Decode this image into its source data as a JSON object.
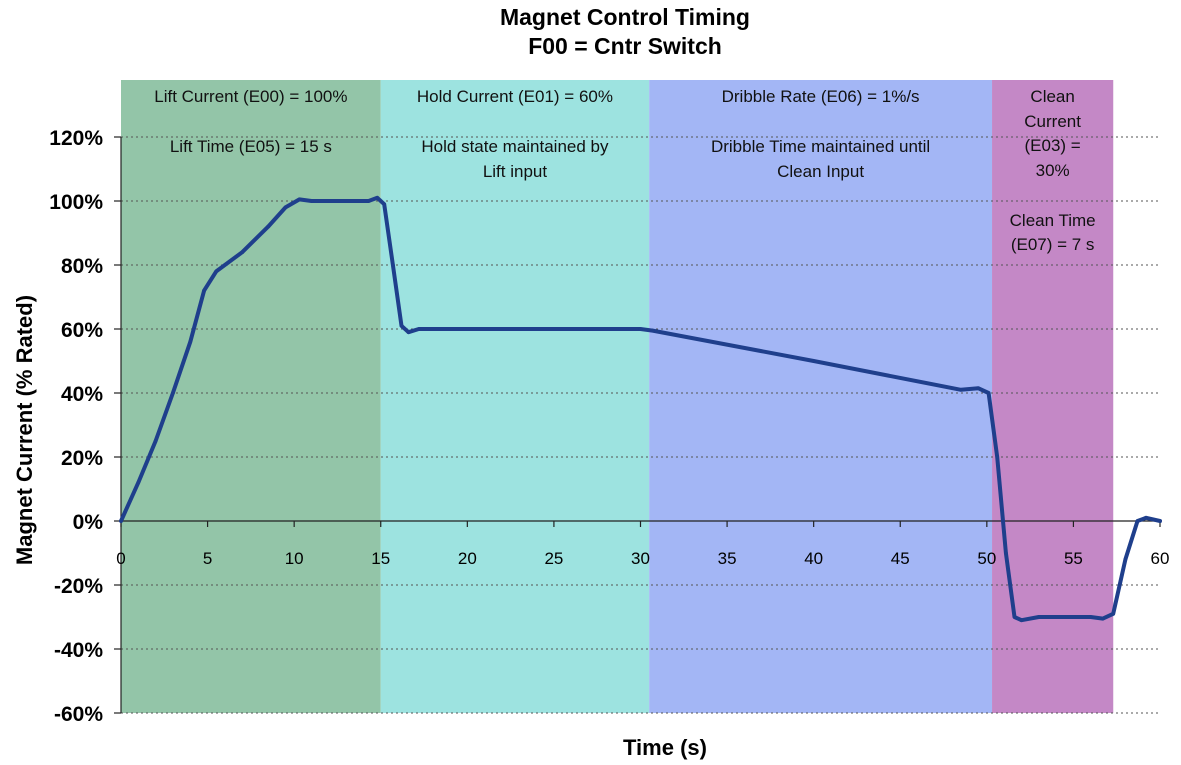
{
  "chart_data": {
    "type": "line",
    "title": "Magnet Control Timing",
    "subtitle": "F00 = Cntr Switch",
    "xlabel": "Time (s)",
    "ylabel": "Magnet Current (% Rated)",
    "xlim": [
      0,
      60
    ],
    "ylim": [
      -60,
      120
    ],
    "x_ticks": [
      "0",
      "5",
      "10",
      "15",
      "20",
      "25",
      "30",
      "35",
      "40",
      "45",
      "50",
      "55",
      "60"
    ],
    "y_ticks": [
      "120%",
      "100%",
      "80%",
      "60%",
      "40%",
      "20%",
      "0%",
      "-20%",
      "-40%",
      "-60%"
    ],
    "grid": "horizontal dotted",
    "regions": [
      {
        "x0": 0,
        "x1": 15,
        "color": "#93c5a8",
        "lines": [
          "Lift Current (E00) = 100%",
          "Lift Time (E05) = 15 s"
        ]
      },
      {
        "x0": 15,
        "x1": 30.5,
        "color": "#9de3e0",
        "lines": [
          "Hold Current (E01) = 60%",
          "Hold state maintained by",
          "Lift input"
        ]
      },
      {
        "x0": 30.5,
        "x1": 50.3,
        "color": "#a3b6f5",
        "lines": [
          "Dribble Rate (E06) = 1%/s",
          "Dribble Time maintained until",
          "Clean Input"
        ]
      },
      {
        "x0": 50.3,
        "x1": 57.3,
        "color": "#c488c6",
        "lines": [
          "Clean",
          "Current",
          "(E03) =",
          "30%",
          "Clean Time",
          "(E07) = 7 s"
        ]
      }
    ],
    "series": [
      {
        "color": "#1f3f8c",
        "points": [
          [
            0,
            0
          ],
          [
            1,
            12
          ],
          [
            2,
            25
          ],
          [
            3,
            40
          ],
          [
            4,
            56
          ],
          [
            4.8,
            72
          ],
          [
            5.5,
            78
          ],
          [
            7,
            84
          ],
          [
            8.5,
            92
          ],
          [
            9.5,
            98
          ],
          [
            10.3,
            100.5
          ],
          [
            11,
            100
          ],
          [
            14.3,
            100
          ],
          [
            14.8,
            101
          ],
          [
            15.2,
            99
          ],
          [
            15.7,
            80
          ],
          [
            16.2,
            61
          ],
          [
            16.6,
            59
          ],
          [
            17.2,
            60
          ],
          [
            30,
            60
          ],
          [
            30.7,
            59.5
          ],
          [
            40,
            50
          ],
          [
            48.5,
            41
          ],
          [
            49.5,
            41.5
          ],
          [
            50.1,
            40
          ],
          [
            50.6,
            20
          ],
          [
            51.1,
            -10
          ],
          [
            51.6,
            -30
          ],
          [
            52,
            -31
          ],
          [
            53,
            -30
          ],
          [
            56,
            -30
          ],
          [
            56.7,
            -30.5
          ],
          [
            57.3,
            -29
          ],
          [
            58,
            -12
          ],
          [
            58.7,
            0
          ],
          [
            59.2,
            1
          ],
          [
            60,
            0
          ]
        ]
      }
    ]
  }
}
